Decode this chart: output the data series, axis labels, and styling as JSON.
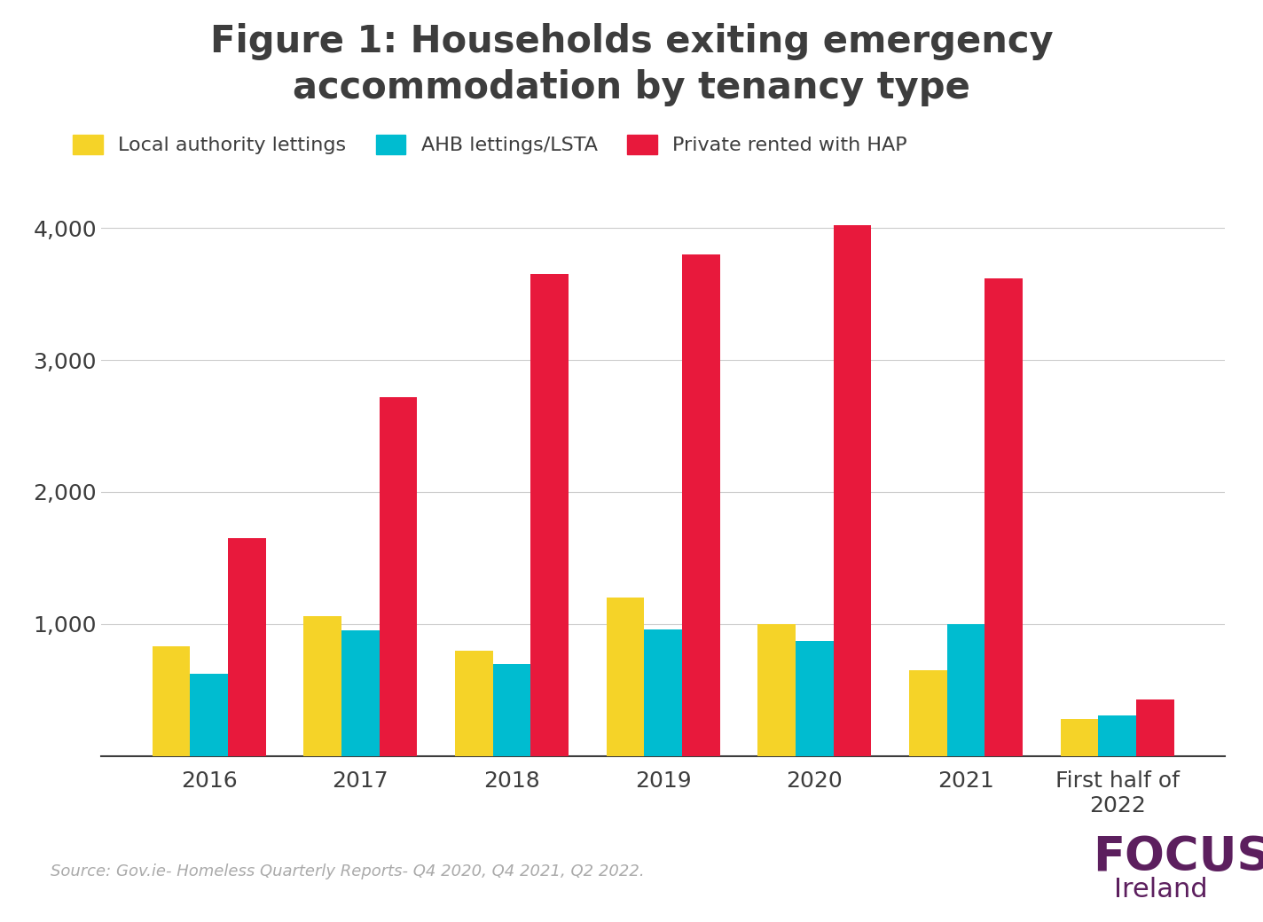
{
  "title_line1": "Figure 1: Households exiting emergency",
  "title_line2": "accommodation by tenancy type",
  "categories": [
    "2016",
    "2017",
    "2018",
    "2019",
    "2020",
    "2021",
    "First half of\n2022"
  ],
  "local_authority": [
    830,
    1060,
    800,
    1200,
    1000,
    650,
    280
  ],
  "ahb_lettings": [
    620,
    950,
    700,
    960,
    870,
    1000,
    310
  ],
  "private_hap": [
    1650,
    2720,
    3650,
    3800,
    4020,
    3620,
    430
  ],
  "color_local": "#F5D328",
  "color_ahb": "#00BCD0",
  "color_hap": "#E8193C",
  "legend_labels": [
    "Local authority lettings",
    "AHB lettings/LSTA",
    "Private rented with HAP"
  ],
  "ylim": [
    0,
    4400
  ],
  "yticks": [
    0,
    1000,
    2000,
    3000,
    4000
  ],
  "source_text": "Source: Gov.ie- Homeless Quarterly Reports- Q4 2020, Q4 2021, Q2 2022.",
  "background_color": "#ffffff",
  "title_color": "#3d3d3d",
  "tick_color": "#3d3d3d",
  "grid_color": "#cccccc",
  "bar_width": 0.25,
  "focus_color": "#5c1f5e",
  "focus_text": "FOCUS",
  "ireland_text": "Ireland"
}
